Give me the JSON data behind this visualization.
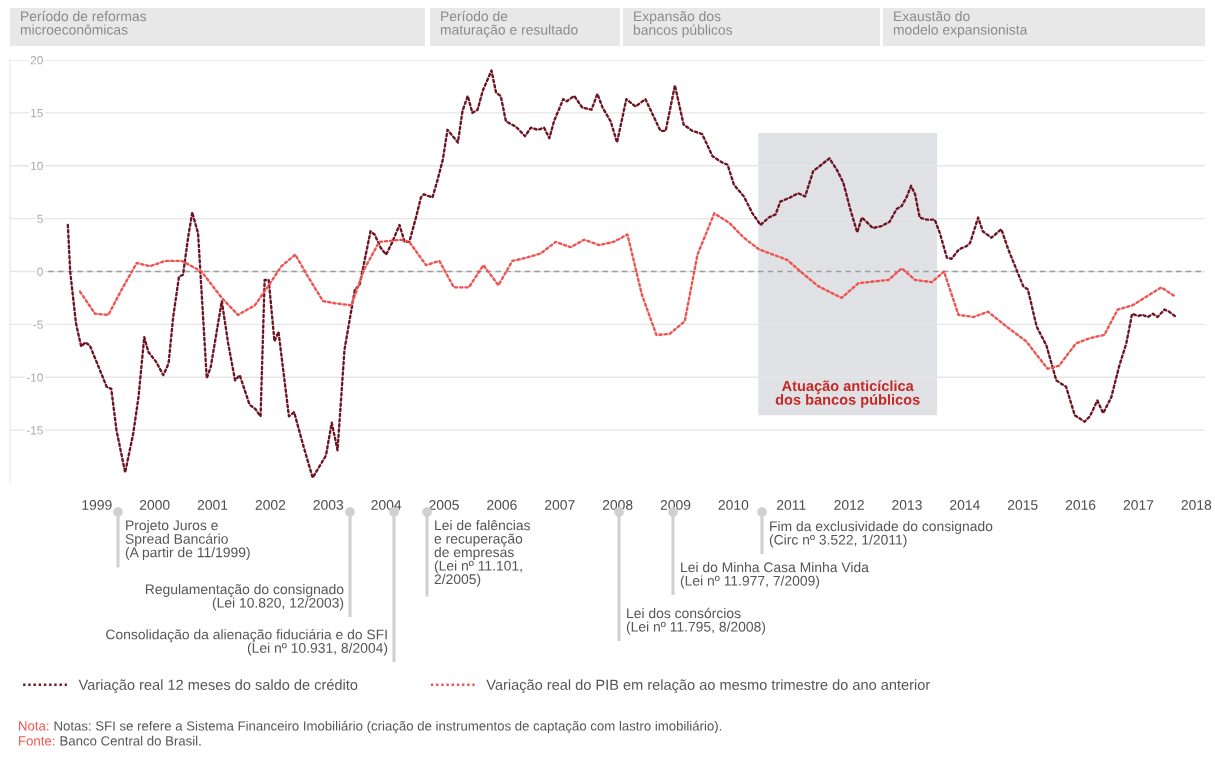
{
  "chart_data": {
    "type": "line",
    "xlim": [
      1998.0,
      2018.65
    ],
    "xticks": [
      {
        "value": 1999.5,
        "label": "1999"
      },
      {
        "value": 2000.5,
        "label": "2000"
      },
      {
        "value": 2001.5,
        "label": "2001"
      },
      {
        "value": 2002.5,
        "label": "2002"
      },
      {
        "value": 2003.5,
        "label": "2003"
      },
      {
        "value": 2004.5,
        "label": "2004"
      },
      {
        "value": 2005.5,
        "label": "2005"
      },
      {
        "value": 2006.5,
        "label": "2006"
      },
      {
        "value": 2007.5,
        "label": "2007"
      },
      {
        "value": 2008.5,
        "label": "2008"
      },
      {
        "value": 2009.5,
        "label": "2009"
      },
      {
        "value": 2010.5,
        "label": "2010"
      },
      {
        "value": 2011.5,
        "label": "2011"
      },
      {
        "value": 2012.5,
        "label": "2012"
      },
      {
        "value": 2013.5,
        "label": "2013"
      },
      {
        "value": 2014.5,
        "label": "2014"
      },
      {
        "value": 2015.5,
        "label": "2015"
      },
      {
        "value": 2016.5,
        "label": "2016"
      },
      {
        "value": 2017.5,
        "label": "2017"
      },
      {
        "value": 2018.5,
        "label": "2018"
      }
    ],
    "ylim": [
      -20,
      20
    ],
    "yticks": [
      20,
      15,
      10,
      5,
      0,
      -5,
      -10,
      -15
    ],
    "grid": "y",
    "legend": "bottom",
    "line_style": "dotted",
    "marker": "none",
    "series": [
      {
        "name": "Variação real 12 meses do saldo de crédito",
        "color": "#6e1423",
        "x": [
          1999.0,
          1999.04,
          1999.14,
          1999.23,
          1999.3,
          1999.38,
          1999.53,
          1999.67,
          1999.75,
          1999.84,
          1999.99,
          2000.13,
          2000.22,
          2000.32,
          2000.39,
          2000.52,
          2000.65,
          2000.74,
          2000.82,
          2000.92,
          2000.99,
          2001.08,
          2001.15,
          2001.25,
          2001.4,
          2001.47,
          2001.66,
          2001.77,
          2001.89,
          2001.97,
          2002.14,
          2002.24,
          2002.33,
          2002.4,
          2002.47,
          2002.57,
          2002.64,
          2002.82,
          2002.91,
          2003.06,
          2003.23,
          2003.46,
          2003.56,
          2003.66,
          2003.78,
          2003.96,
          2004.04,
          2004.23,
          2004.3,
          2004.41,
          2004.5,
          2004.6,
          2004.73,
          2004.82,
          2004.9,
          2005.02,
          2005.1,
          2005.15,
          2005.3,
          2005.39,
          2005.48,
          2005.56,
          2005.74,
          2005.82,
          2005.91,
          2005.99,
          2006.08,
          2006.17,
          2006.32,
          2006.4,
          2006.48,
          2006.57,
          2006.74,
          2006.9,
          2007.0,
          2007.12,
          2007.23,
          2007.32,
          2007.4,
          2007.56,
          2007.62,
          2007.75,
          2007.89,
          2008.05,
          2008.15,
          2008.24,
          2008.38,
          2008.49,
          2008.65,
          2008.81,
          2008.98,
          2009.24,
          2009.33,
          2009.49,
          2009.64,
          2009.79,
          2009.96,
          2010.14,
          2010.31,
          2010.4,
          2010.51,
          2010.68,
          2010.83,
          2010.97,
          2011.11,
          2011.23,
          2011.31,
          2011.48,
          2011.62,
          2011.74,
          2011.88,
          2012.0,
          2012.16,
          2012.29,
          2012.4,
          2012.52,
          2012.64,
          2012.72,
          2012.8,
          2012.91,
          2013.06,
          2013.2,
          2013.32,
          2013.41,
          2013.5,
          2013.57,
          2013.64,
          2013.72,
          2013.84,
          2013.98,
          2014.07,
          2014.19,
          2014.27,
          2014.4,
          2014.53,
          2014.59,
          2014.73,
          2014.81,
          2014.96,
          2015.13,
          2015.25,
          2015.39,
          2015.51,
          2015.59,
          2015.74,
          2015.91,
          2016.08,
          2016.25,
          2016.4,
          2016.57,
          2016.66,
          2016.79,
          2016.89,
          2017.03,
          2017.17,
          2017.29,
          2017.39,
          2017.49,
          2017.57,
          2017.66,
          2017.75,
          2017.83,
          2017.95,
          2018.03,
          2018.15
        ],
        "values": [
          4.4,
          0.0,
          -4.9,
          -7.1,
          -6.7,
          -7.0,
          -9.0,
          -10.9,
          -11.1,
          -15.0,
          -19.0,
          -15.3,
          -11.9,
          -6.2,
          -7.6,
          -8.5,
          -9.8,
          -8.7,
          -4.3,
          -0.5,
          -0.3,
          3.3,
          5.6,
          3.6,
          -10.1,
          -9.0,
          -2.8,
          -6.8,
          -10.3,
          -9.8,
          -12.6,
          -13.0,
          -13.7,
          -0.8,
          -0.8,
          -6.6,
          -5.7,
          -13.7,
          -13.3,
          -16.3,
          -19.5,
          -17.4,
          -14.3,
          -16.9,
          -7.4,
          -1.7,
          -1.3,
          3.8,
          3.5,
          2.2,
          1.6,
          2.7,
          4.4,
          2.8,
          2.8,
          5.2,
          7.0,
          7.3,
          7.0,
          8.7,
          10.6,
          13.4,
          12.2,
          15.2,
          16.6,
          15.0,
          15.3,
          17.1,
          19.0,
          16.9,
          16.6,
          14.2,
          13.7,
          12.8,
          13.6,
          13.4,
          13.6,
          12.6,
          14.2,
          16.3,
          16.1,
          16.6,
          15.5,
          15.3,
          16.8,
          15.5,
          14.2,
          12.2,
          16.3,
          15.6,
          16.3,
          13.3,
          13.3,
          17.6,
          13.9,
          13.3,
          13.0,
          10.9,
          10.3,
          10.1,
          8.2,
          7.1,
          5.5,
          4.4,
          5.1,
          5.4,
          6.6,
          7.0,
          7.4,
          7.1,
          9.5,
          10.0,
          10.7,
          9.6,
          8.4,
          5.9,
          3.7,
          5.1,
          4.7,
          4.1,
          4.3,
          4.7,
          5.9,
          6.2,
          7.1,
          8.1,
          7.3,
          5.1,
          4.9,
          4.9,
          3.6,
          1.3,
          1.2,
          2.1,
          2.4,
          2.7,
          5.1,
          3.8,
          3.2,
          4.0,
          2.1,
          0.2,
          -1.4,
          -1.7,
          -5.2,
          -7.0,
          -10.3,
          -10.9,
          -13.6,
          -14.2,
          -13.7,
          -12.2,
          -13.4,
          -11.9,
          -8.9,
          -6.8,
          -4.0,
          -4.2,
          -4.1,
          -4.3,
          -4.0,
          -4.3,
          -3.6,
          -3.8,
          -4.3
        ]
      },
      {
        "name": "Variação real do PIB em relação ao mesmo trimestre do ano anterior",
        "color": "#ef5350",
        "x": [
          1999.21,
          1999.47,
          1999.7,
          1999.93,
          2000.19,
          2000.42,
          2000.68,
          2000.97,
          2001.31,
          2001.66,
          2001.94,
          2002.23,
          2002.46,
          2002.69,
          2002.93,
          2003.15,
          2003.41,
          2003.61,
          2003.9,
          2004.12,
          2004.38,
          2004.76,
          2004.9,
          2005.19,
          2005.42,
          2005.67,
          2005.93,
          2006.18,
          2006.44,
          2006.68,
          2006.92,
          2007.17,
          2007.43,
          2007.69,
          2007.92,
          2008.18,
          2008.43,
          2008.67,
          2008.92,
          2009.17,
          2009.4,
          2009.66,
          2009.88,
          2010.17,
          2010.43,
          2010.68,
          2010.94,
          2011.43,
          2011.66,
          2011.97,
          2012.37,
          2012.66,
          2013.18,
          2013.41,
          2013.64,
          2013.93,
          2014.14,
          2014.39,
          2014.65,
          2014.9,
          2015.22,
          2015.56,
          2015.93,
          2016.13,
          2016.42,
          2016.66,
          2016.91,
          2017.14,
          2017.4,
          2017.63,
          2017.89,
          2018.15
        ],
        "values": [
          -1.9,
          -4.0,
          -4.1,
          -1.7,
          0.8,
          0.5,
          1.0,
          1.0,
          0.0,
          -2.5,
          -4.1,
          -3.2,
          -1.4,
          0.5,
          1.6,
          -0.5,
          -2.8,
          -3.0,
          -3.2,
          0.2,
          2.8,
          3.0,
          2.8,
          0.6,
          1.0,
          -1.5,
          -1.5,
          0.6,
          -1.3,
          1.0,
          1.3,
          1.7,
          2.8,
          2.3,
          3.0,
          2.5,
          2.8,
          3.5,
          -2.2,
          -6.0,
          -5.9,
          -4.7,
          1.6,
          5.5,
          4.6,
          3.2,
          2.1,
          1.1,
          0.0,
          -1.4,
          -2.5,
          -1.1,
          -0.8,
          0.3,
          -0.8,
          -1.0,
          0.0,
          -4.1,
          -4.3,
          -3.8,
          -5.2,
          -6.6,
          -9.2,
          -8.9,
          -6.8,
          -6.3,
          -6.0,
          -3.6,
          -3.2,
          -2.4,
          -1.5,
          -2.4
        ]
      }
    ],
    "ref_lines": [
      {
        "axis": "y",
        "value": 0,
        "color": "#9e9e9e",
        "line_style": "dashed"
      }
    ],
    "bands": [
      {
        "axis": "x",
        "from": 2010.93,
        "to": 2014.02,
        "label": "Atuação anticíclica\ndos bancos públicos",
        "color": "#dfe1e4"
      }
    ],
    "annotations": [
      "Período de reformas\nmicroeconômicas",
      "Período de\nmaturação e resultado",
      "Expansão dos\nbancos públicos",
      "Exaustão do\nmodelo expansionista",
      "Projeto Juros e\nSpread Bancário\n(A partir de 11/1999)",
      "Regulamentação do consignado\n(Lei 10.820, 12/2003)",
      "Consolidação da alienação fiduciária e do SFI\n(Lei nº 10.931, 8/2004)",
      "Lei de falências\ne recuperação\nde empresas\n(Lei nº 11.101,\n2/2005)",
      "Lei dos consórcios\n(Lei nº 11.795, 8/2008)",
      "Lei do Minha Casa Minha Vida\n(Lei nº 11.977, 7/2009)",
      "Fim da exclusividade do consignado\n(Circ nº 3.522, 1/2011)",
      "Nota: Notas: SFI se refere a Sistema Financeiro Imobiliário (criação de instrumentos de captação com lastro imobiliário).",
      "Fonte: Banco Central do Brasil."
    ]
  }
}
